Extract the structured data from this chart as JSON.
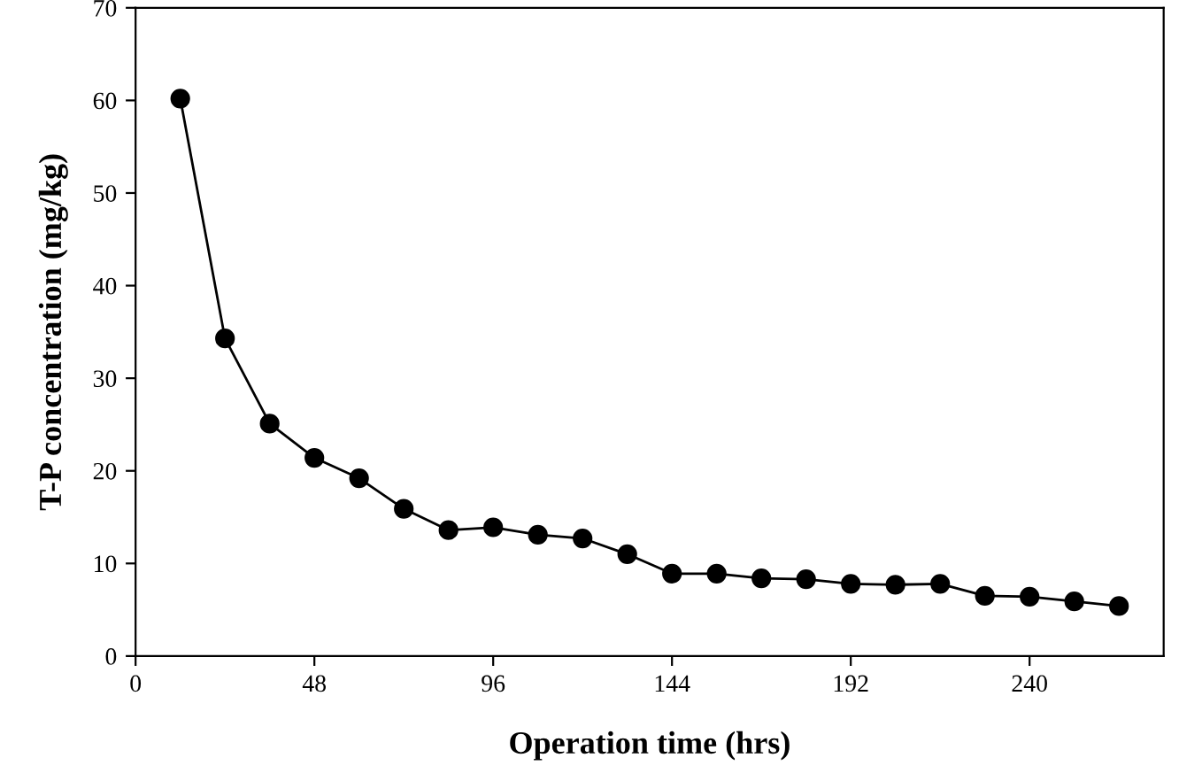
{
  "chart_data": {
    "type": "line",
    "xlabel": "Operation time (hrs)",
    "ylabel": "T-P concentration (mg/kg)",
    "x": [
      12,
      24,
      36,
      48,
      60,
      72,
      84,
      96,
      108,
      120,
      132,
      144,
      156,
      168,
      180,
      192,
      204,
      216,
      228,
      240,
      252,
      264
    ],
    "series": [
      {
        "color": "#000000",
        "values": [
          60.2,
          34.3,
          25.1,
          21.4,
          19.2,
          15.9,
          13.6,
          13.9,
          13.1,
          12.7,
          11.0,
          8.9,
          8.9,
          8.4,
          8.3,
          7.8,
          7.7,
          7.8,
          6.5,
          6.4,
          5.9,
          5.4
        ]
      }
    ],
    "xlim": [
      0,
      276
    ],
    "xticks": [
      0,
      48,
      96,
      144,
      192,
      240
    ],
    "ylim": [
      0,
      70
    ],
    "yticks": [
      0,
      10,
      20,
      30,
      40,
      50,
      60,
      70
    ],
    "grid": false,
    "legend": false,
    "marker": "circle",
    "line_style": "solid"
  }
}
